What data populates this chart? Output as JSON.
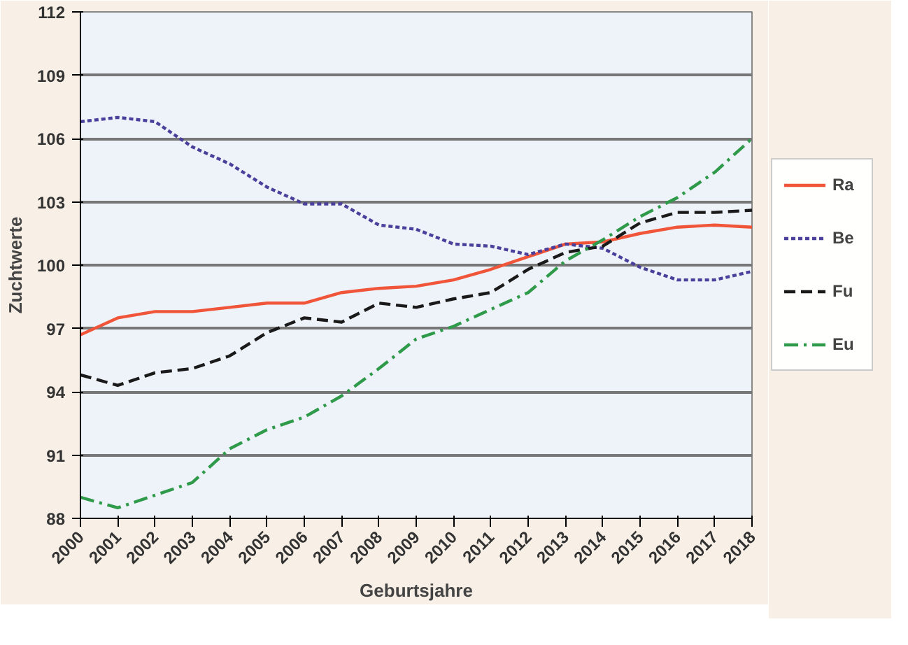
{
  "chart_data": {
    "type": "line",
    "xlabel": "Geburtsjahre",
    "ylabel": "Zuchtwerte",
    "categories": [
      "2000",
      "2001",
      "2002",
      "2003",
      "2004",
      "2005",
      "2006",
      "2007",
      "2008",
      "2009",
      "2010",
      "2011",
      "2012",
      "2013",
      "2014",
      "2015",
      "2016",
      "2017",
      "2018"
    ],
    "ylim": [
      88,
      112
    ],
    "yticks": [
      88,
      91,
      94,
      97,
      100,
      103,
      106,
      109,
      112
    ],
    "grid": "y",
    "legend": "right",
    "marker": "none",
    "series": [
      {
        "name": "Ra",
        "color": "#f0553a",
        "line_style": "solid",
        "values": [
          96.7,
          97.5,
          97.8,
          97.8,
          98.0,
          98.2,
          98.2,
          98.7,
          98.9,
          99.0,
          99.3,
          99.8,
          100.4,
          101.0,
          101.1,
          101.5,
          101.8,
          101.9,
          101.8
        ]
      },
      {
        "name": "Be",
        "color": "#4a3f9a",
        "line_style": "dotted",
        "values": [
          106.8,
          107.0,
          106.8,
          105.6,
          104.8,
          103.7,
          102.9,
          102.9,
          101.9,
          101.7,
          101.0,
          100.9,
          100.5,
          101.0,
          100.8,
          99.9,
          99.3,
          99.3,
          99.7
        ]
      },
      {
        "name": "Fu",
        "color": "#1a1a1a",
        "line_style": "dashed",
        "values": [
          94.8,
          94.3,
          94.9,
          95.1,
          95.7,
          96.8,
          97.5,
          97.3,
          98.2,
          98.0,
          98.4,
          98.7,
          99.8,
          100.6,
          100.9,
          102.0,
          102.5,
          102.5,
          102.6
        ]
      },
      {
        "name": "Eu",
        "color": "#2f9a4a",
        "line_style": "dashdot",
        "values": [
          89.0,
          88.5,
          89.1,
          89.7,
          91.3,
          92.2,
          92.8,
          93.8,
          95.1,
          96.5,
          97.1,
          97.9,
          98.7,
          100.2,
          101.2,
          102.3,
          103.2,
          104.4,
          106.0
        ]
      }
    ]
  }
}
